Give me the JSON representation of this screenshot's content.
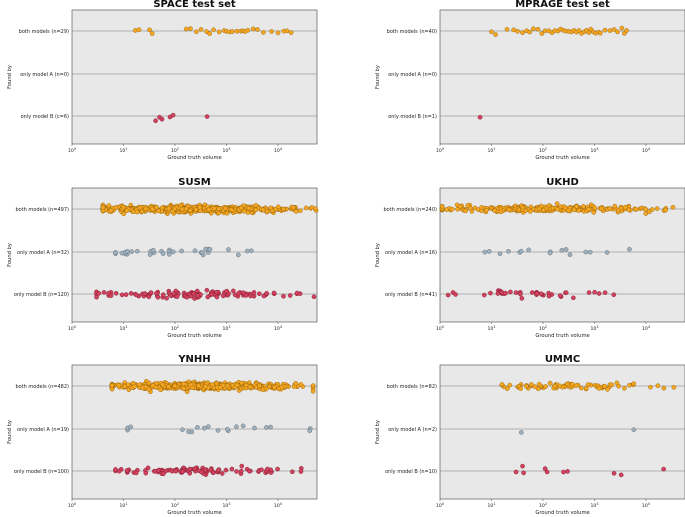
{
  "figure": {
    "panels": [
      {
        "title": "SPACE test set",
        "xlabel": "Ground truth volume",
        "ylabel": "Found by",
        "categories": [
          "both models (n=29)",
          "only model A (n=0)",
          "only model B (c=6)"
        ],
        "x_ticks": [
          "10",
          "10",
          "10",
          "10",
          "10"
        ],
        "x_tick_exponents": [
          "0",
          "1",
          "2",
          "3",
          "4"
        ]
      },
      {
        "title": "MPRAGE test set",
        "xlabel": "Ground truth volume",
        "ylabel": "Found by",
        "categories": [
          "both models (n=40)",
          "only model A (n=0)",
          "only model B (n=1)"
        ],
        "x_ticks": [
          "10",
          "10",
          "10",
          "10",
          "10"
        ],
        "x_tick_exponents": [
          "0",
          "1",
          "2",
          "3",
          "4"
        ]
      },
      {
        "title": "SUSM",
        "xlabel": "Ground truth volume",
        "ylabel": "Found by",
        "categories": [
          "both models (n=497)",
          "only model A (n=32)",
          "only model B (n=120)"
        ],
        "x_ticks": [
          "10",
          "10",
          "10",
          "10",
          "10"
        ],
        "x_tick_exponents": [
          "0",
          "1",
          "2",
          "3",
          "4"
        ]
      },
      {
        "title": "UKHD",
        "xlabel": "Ground truth volume",
        "ylabel": "Found by",
        "categories": [
          "both models (n=240)",
          "only model A (n=16)",
          "only model B (n=41)"
        ],
        "x_ticks": [
          "10",
          "10",
          "10",
          "10",
          "10"
        ],
        "x_tick_exponents": [
          "0",
          "1",
          "2",
          "3",
          "4"
        ]
      },
      {
        "title": "YNHH",
        "xlabel": "Ground truth volume",
        "ylabel": "Found by",
        "categories": [
          "both models (n=482)",
          "only model A (n=19)",
          "only model B (n=100)"
        ],
        "x_ticks": [
          "10",
          "10",
          "10",
          "10",
          "10"
        ],
        "x_tick_exponents": [
          "0",
          "1",
          "2",
          "3",
          "4"
        ]
      },
      {
        "title": "UMMC",
        "xlabel": "Ground truth volume",
        "ylabel": "Found by",
        "categories": [
          "both models (n=82)",
          "only model A (n=2)",
          "only model B (n=10)"
        ],
        "x_ticks": [
          "10",
          "10",
          "10",
          "10",
          "10"
        ],
        "x_tick_exponents": [
          "0",
          "1",
          "2",
          "3",
          "4"
        ]
      }
    ]
  },
  "chart_data": [
    {
      "type": "scatter",
      "title": "SPACE test set",
      "xlabel": "Ground truth volume",
      "ylabel": "Found by",
      "x_scale": "log",
      "xlim": [
        1,
        60000
      ],
      "categories": [
        "both models (n=29)",
        "only model A (n=0)",
        "only model B (c=6)"
      ],
      "series": [
        {
          "category": "both models (n=29)",
          "values": [
            17,
            20,
            32,
            36,
            165,
            200,
            260,
            320,
            410,
            470,
            560,
            720,
            900,
            1000,
            1150,
            1300,
            1600,
            1900,
            2100,
            2300,
            2600,
            3300,
            4000,
            5200,
            7500,
            10000,
            13000,
            15000,
            18000
          ]
        },
        {
          "category": "only model A (n=0)",
          "values": []
        },
        {
          "category": "only model B (c=6)",
          "values": [
            42,
            50,
            56,
            80,
            92,
            420
          ]
        }
      ],
      "colors": {
        "both": "#f5a623",
        "only_a": "#9fb0bc",
        "only_b": "#d0425e",
        "background": "#e8e8e8"
      },
      "grid": "horizontal"
    },
    {
      "type": "scatter",
      "title": "MPRAGE test set",
      "xlabel": "Ground truth volume",
      "ylabel": "Found by",
      "x_scale": "log",
      "xlim": [
        1,
        60000
      ],
      "categories": [
        "both models (n=40)",
        "only model A (n=0)",
        "only model B (n=1)"
      ],
      "series": [
        {
          "category": "both models (n=40)",
          "values": [
            10,
            12,
            20,
            27,
            32,
            40,
            48,
            55,
            65,
            80,
            95,
            110,
            130,
            150,
            170,
            195,
            220,
            250,
            280,
            320,
            360,
            400,
            450,
            500,
            560,
            640,
            700,
            780,
            850,
            950,
            1050,
            1200,
            1300,
            1600,
            2000,
            2400,
            2800,
            3400,
            3800,
            4200
          ]
        },
        {
          "category": "only model A (n=0)",
          "values": []
        },
        {
          "category": "only model B (n=1)",
          "values": [
            6
          ]
        }
      ],
      "colors": {
        "both": "#f5a623",
        "only_a": "#9fb0bc",
        "only_b": "#d0425e",
        "background": "#e8e8e8"
      },
      "grid": "horizontal"
    },
    {
      "type": "scatter",
      "title": "SUSM",
      "xlabel": "Ground truth volume",
      "ylabel": "Found by",
      "x_scale": "log",
      "xlim": [
        1,
        60000
      ],
      "categories": [
        "both models (n=497)",
        "only model A (n=32)",
        "only model B (n=120)"
      ],
      "series": [
        {
          "category": "both models (n=497)",
          "n": 497,
          "x_range": [
            4,
            55000
          ]
        },
        {
          "category": "only model A (n=32)",
          "n": 32,
          "x_range": [
            7,
            7500
          ]
        },
        {
          "category": "only model B (n=120)",
          "n": 120,
          "x_range": [
            3,
            50000
          ]
        }
      ],
      "colors": {
        "both": "#f5a623",
        "only_a": "#9fb0bc",
        "only_b": "#d0425e",
        "background": "#e8e8e8"
      },
      "grid": "horizontal"
    },
    {
      "type": "scatter",
      "title": "UKHD",
      "xlabel": "Ground truth volume",
      "ylabel": "Found by",
      "x_scale": "log",
      "xlim": [
        1,
        60000
      ],
      "categories": [
        "both models (n=240)",
        "only model A (n=16)",
        "only model B (n=41)"
      ],
      "series": [
        {
          "category": "both models (n=240)",
          "n": 240,
          "x_range": [
            1.1,
            55000
          ]
        },
        {
          "category": "only model A (n=16)",
          "n": 16,
          "x_range": [
            6,
            28000
          ]
        },
        {
          "category": "only model B (n=41)",
          "n": 41,
          "x_range": [
            1.1,
            11000
          ]
        }
      ],
      "colors": {
        "both": "#f5a623",
        "only_a": "#9fb0bc",
        "only_b": "#d0425e",
        "background": "#e8e8e8"
      },
      "grid": "horizontal"
    },
    {
      "type": "scatter",
      "title": "YNHH",
      "xlabel": "Ground truth volume",
      "ylabel": "Found by",
      "x_scale": "log",
      "xlim": [
        1,
        60000
      ],
      "categories": [
        "both models (n=482)",
        "only model A (n=19)",
        "only model B (n=100)"
      ],
      "series": [
        {
          "category": "both models (n=482)",
          "n": 482,
          "x_range": [
            6,
            48000
          ]
        },
        {
          "category": "only model A (n=19)",
          "n": 19,
          "x_range": [
            12,
            45000
          ]
        },
        {
          "category": "only model B (n=100)",
          "n": 100,
          "x_range": [
            7,
            48000
          ]
        }
      ],
      "colors": {
        "both": "#f5a623",
        "only_a": "#9fb0bc",
        "only_b": "#d0425e",
        "background": "#e8e8e8"
      },
      "grid": "horizontal"
    },
    {
      "type": "scatter",
      "title": "UMMC",
      "xlabel": "Ground truth volume",
      "ylabel": "Found by",
      "x_scale": "log",
      "xlim": [
        1,
        60000
      ],
      "categories": [
        "both models (n=82)",
        "only model A (n=2)",
        "only model B (n=10)"
      ],
      "series": [
        {
          "category": "both models (n=82)",
          "n": 82,
          "x_range": [
            16,
            60000
          ]
        },
        {
          "category": "only model A (n=2)",
          "values": [
            38,
            5800
          ]
        },
        {
          "category": "only model B (n=10)",
          "values": [
            30,
            40,
            42,
            110,
            120,
            250,
            300,
            2400,
            3300,
            22000
          ]
        }
      ],
      "colors": {
        "both": "#f5a623",
        "only_a": "#9fb0bc",
        "only_b": "#d0425e",
        "background": "#e8e8e8"
      },
      "grid": "horizontal"
    }
  ]
}
